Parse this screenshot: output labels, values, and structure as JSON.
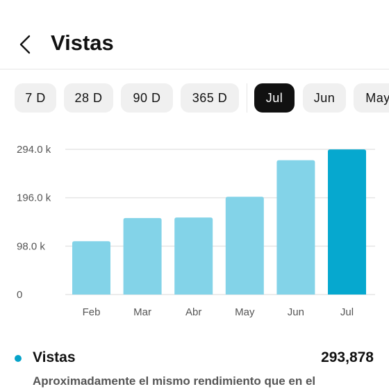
{
  "header": {
    "title": "Vistas"
  },
  "ranges": [
    {
      "label": "7 D",
      "active": false
    },
    {
      "label": "28 D",
      "active": false
    },
    {
      "label": "90 D",
      "active": false
    },
    {
      "label": "365 D",
      "active": false
    },
    {
      "label": "Jul",
      "active": true
    },
    {
      "label": "Jun",
      "active": false
    },
    {
      "label": "May",
      "active": false
    }
  ],
  "chart_data": {
    "type": "bar",
    "categories": [
      "Feb",
      "Mar",
      "Abr",
      "May",
      "Jun",
      "Jul"
    ],
    "values": [
      108000,
      155000,
      156000,
      198000,
      272000,
      293878
    ],
    "yticks": [
      0,
      98000,
      196000,
      294000
    ],
    "ytick_labels": [
      "0",
      "98.0 k",
      "196.0 k",
      "294.0 k"
    ],
    "ylim": [
      0,
      294000
    ],
    "highlight_index": 5,
    "colors": {
      "bar": "#83d3e8",
      "highlight": "#06a8cf",
      "grid": "#e5e5e5",
      "axis_text": "#555555"
    },
    "grid": true
  },
  "summary": {
    "label": "Vistas",
    "value": "293,878",
    "description": "Aproximadamente el mismo rendimiento que en el"
  },
  "colors": {
    "accent": "#06a3c9",
    "active_chip": "#111111",
    "chip_bg": "#f0f0f0"
  }
}
